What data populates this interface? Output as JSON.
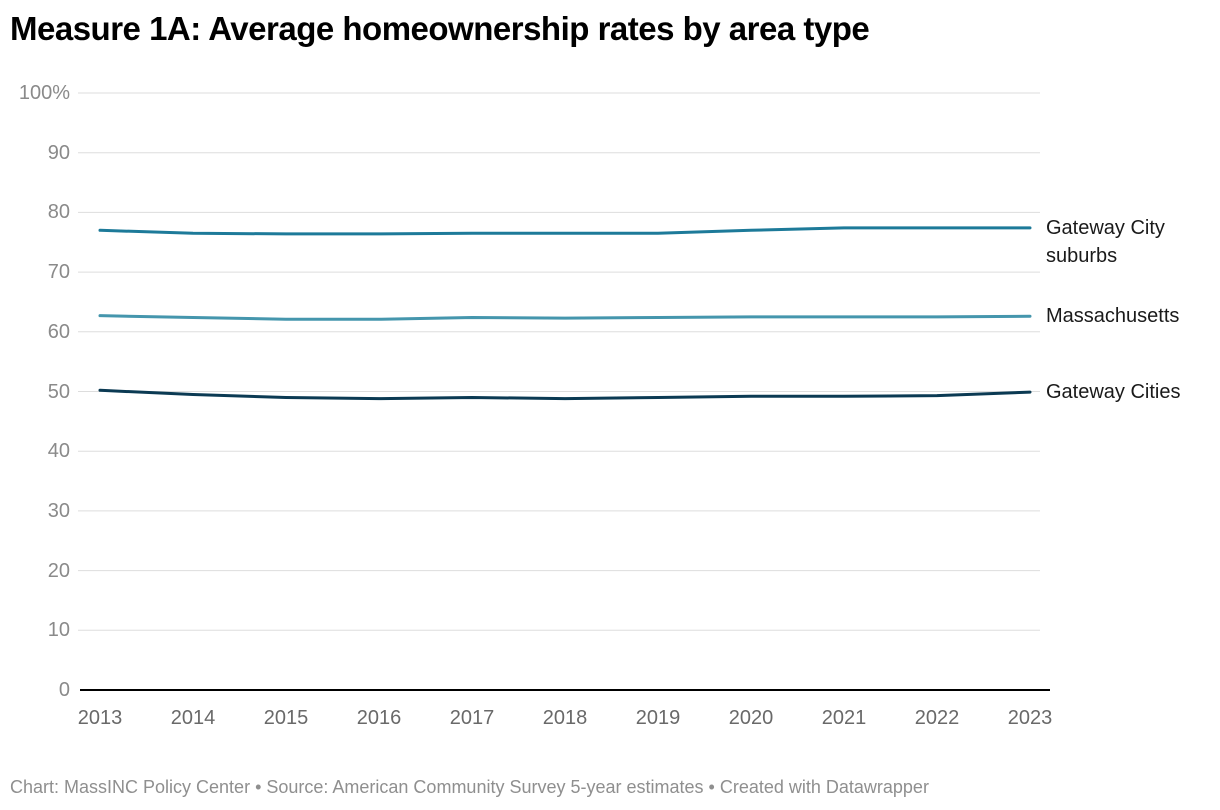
{
  "title": "Measure 1A: Average homeownership rates by area type",
  "footer": "Chart: MassINC Policy Center • Source: American Community Survey 5-year estimates • Created with Datawrapper",
  "chart_data": {
    "type": "line",
    "title": "Measure 1A: Average homeownership rates by area type",
    "xlabel": "",
    "ylabel": "",
    "x": [
      2013,
      2014,
      2015,
      2016,
      2017,
      2018,
      2019,
      2020,
      2021,
      2022,
      2023
    ],
    "ylim": [
      0,
      100
    ],
    "grid": true,
    "legend_position": "right-of-line-ends",
    "yticks": [
      100,
      90,
      80,
      70,
      60,
      50,
      40,
      30,
      20,
      10,
      0
    ],
    "ytick_labels": [
      "100%",
      "90",
      "80",
      "70",
      "60",
      "50",
      "40",
      "30",
      "20",
      "10",
      "0"
    ],
    "series": [
      {
        "name": "Gateway City suburbs",
        "color": "#1d7a99",
        "values": [
          77.0,
          76.5,
          76.4,
          76.4,
          76.5,
          76.5,
          76.5,
          77.0,
          77.4,
          77.4,
          77.4
        ]
      },
      {
        "name": "Massachusetts",
        "color": "#4596ad",
        "values": [
          62.7,
          62.4,
          62.1,
          62.1,
          62.4,
          62.3,
          62.4,
          62.5,
          62.5,
          62.5,
          62.6
        ]
      },
      {
        "name": "Gateway Cities",
        "color": "#0b3a53",
        "values": [
          50.2,
          49.5,
          49.0,
          48.8,
          49.0,
          48.8,
          49.0,
          49.2,
          49.2,
          49.3,
          49.9
        ]
      }
    ]
  }
}
